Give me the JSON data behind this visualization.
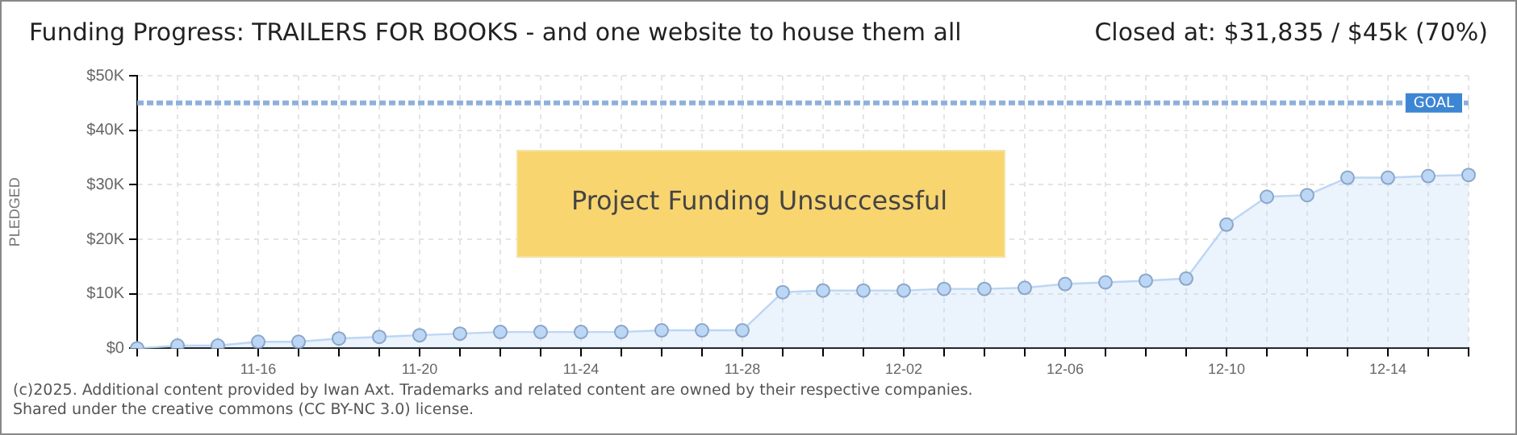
{
  "chart_data": {
    "type": "area",
    "title": "Funding Progress: TRAILERS FOR BOOKS - and one website to house them all",
    "subtitle": "Closed at:  $31,835 /  $45k (70%)",
    "ylabel": "PLEDGED",
    "categories": [
      null,
      null,
      null,
      "11-16",
      null,
      null,
      null,
      "11-20",
      null,
      null,
      null,
      "11-24",
      null,
      null,
      null,
      "11-28",
      null,
      null,
      null,
      "12-02",
      null,
      null,
      null,
      "12-06",
      null,
      null,
      null,
      "12-10",
      null,
      null,
      null,
      "12-14",
      null,
      null
    ],
    "series": [
      {
        "color": "#bcd6f5",
        "values": [
          0,
          0.5,
          0.5,
          1.2,
          1.2,
          1.8,
          2.1,
          2.4,
          2.7,
          3.0,
          3.0,
          3.0,
          3.0,
          3.3,
          3.3,
          3.3,
          10.3,
          10.6,
          10.6,
          10.6,
          10.9,
          10.9,
          11.1,
          11.8,
          12.1,
          12.4,
          12.8,
          22.7,
          27.8,
          28.1,
          31.3,
          31.3,
          31.6,
          31.8
        ]
      }
    ],
    "ylim": [
      0,
      50
    ],
    "yticks": [
      {
        "value": 0,
        "label": "$0"
      },
      {
        "value": 10,
        "label": "$10K"
      },
      {
        "value": 20,
        "label": "$20K"
      },
      {
        "value": 30,
        "label": "$30K"
      },
      {
        "value": 40,
        "label": "$40K"
      },
      {
        "value": 50,
        "label": "$50K"
      }
    ],
    "ref_lines": [
      {
        "axis": "y",
        "value": 45,
        "label": "GOAL",
        "color": "#8fb0dc",
        "line_style": "dashed"
      }
    ],
    "grid": true,
    "legend": false,
    "marker": "circle",
    "annotations": [
      "Project Funding Unsuccessful",
      "(c)2025. Additional content provided by Iwan Axt. Trademarks and related content are owned by their respective companies.",
      "Shared under the creative commons (CC BY-NC 3.0) license."
    ]
  }
}
